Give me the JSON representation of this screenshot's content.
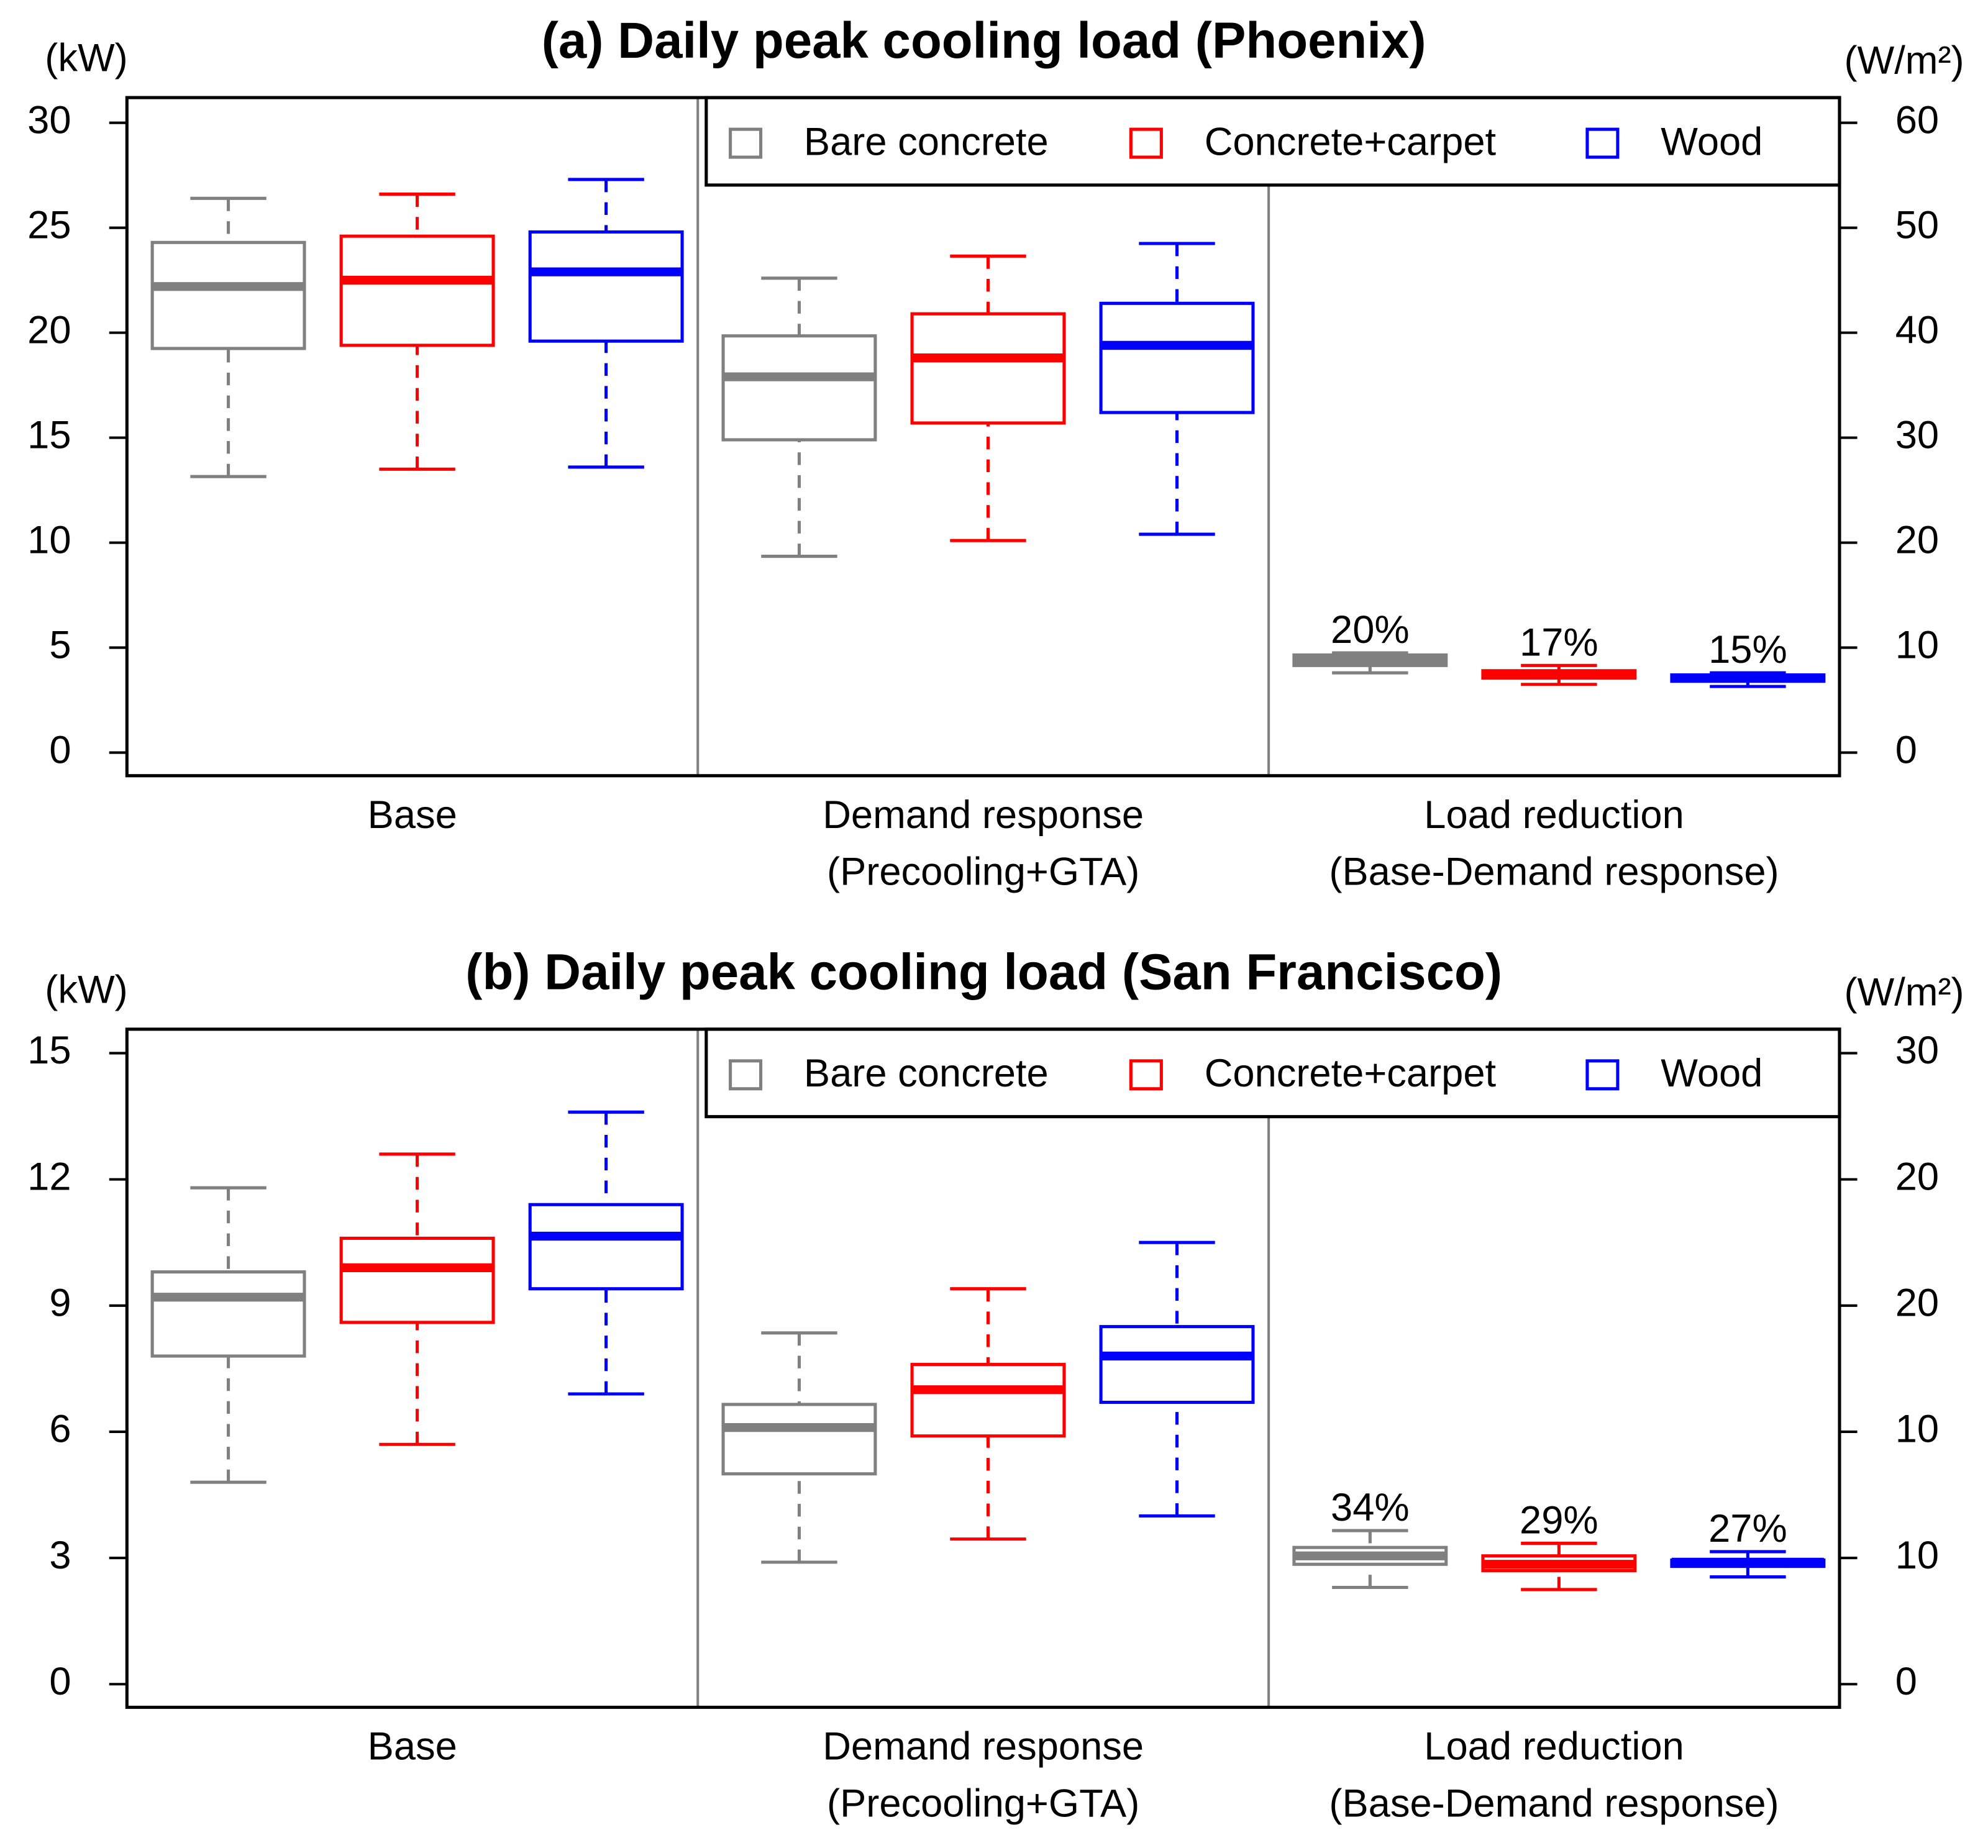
{
  "chart_data": [
    {
      "type": "box",
      "title": "(a) Daily peak cooling load (Phoenix)",
      "ylabel": "(kW)",
      "y2label": "(W/m²)",
      "categories": [
        [
          "Base"
        ],
        [
          "Demand response",
          "(Precooling+GTA)"
        ],
        [
          "Load reduction",
          "(Base-Demand response)"
        ]
      ],
      "ylim": [
        -1.1,
        31.2
      ],
      "yticks": [
        0,
        5,
        10,
        15,
        20,
        25,
        30
      ],
      "y2lim": [
        -2.2,
        62.4
      ],
      "y2ticks": [
        0,
        10,
        20,
        30,
        40,
        50,
        60
      ],
      "legend": "top-right",
      "annotations": [
        "20%",
        "17%",
        "15%"
      ],
      "series": [
        {
          "name": "Bare concrete",
          "color": "#808080",
          "values": [
            [
              13.15,
              19.25,
              22.2,
              24.3,
              26.4
            ],
            [
              9.35,
              14.9,
              17.9,
              19.85,
              22.6
            ],
            [
              3.8,
              4.15,
              4.4,
              4.65,
              4.75
            ]
          ]
        },
        {
          "name": "Concrete+carpet",
          "color": "#ff0000",
          "values": [
            [
              13.5,
              19.4,
              22.5,
              24.6,
              26.6
            ],
            [
              10.1,
              15.7,
              18.8,
              20.9,
              23.65
            ],
            [
              3.25,
              3.55,
              3.75,
              3.9,
              4.15
            ]
          ]
        },
        {
          "name": "Wood",
          "color": "#0000ff",
          "values": [
            [
              13.6,
              19.6,
              22.9,
              24.8,
              27.3
            ],
            [
              10.4,
              16.2,
              19.4,
              21.4,
              24.25
            ],
            [
              3.15,
              3.4,
              3.55,
              3.7,
              3.8
            ]
          ]
        }
      ]
    },
    {
      "type": "box",
      "title": "(b) Daily peak cooling load (San Francisco)",
      "ylabel": "(kW)",
      "y2label": "(W/m²)",
      "categories": [
        [
          "Base"
        ],
        [
          "Demand response",
          "(Precooling+GTA)"
        ],
        [
          "Load reduction",
          "(Base-Demand response)"
        ]
      ],
      "ylim": [
        -0.55,
        15.57
      ],
      "yticks": [
        0,
        3,
        6,
        9,
        12,
        15
      ],
      "y2lim": [
        -1.1,
        31.14
      ],
      "y2ticks": [
        0,
        {
          "value": 6,
          "label": "10"
        },
        {
          "value": 12,
          "label": "10"
        },
        {
          "value": 18,
          "label": "20"
        },
        {
          "value": 24,
          "label": "20"
        },
        30
      ],
      "legend": "top-right",
      "annotations": [
        "34%",
        "29%",
        "27%"
      ],
      "series": [
        {
          "name": "Bare concrete",
          "color": "#808080",
          "values": [
            [
              4.8,
              7.8,
              9.2,
              9.8,
              11.8
            ],
            [
              2.9,
              5.0,
              6.1,
              6.65,
              8.35
            ],
            [
              2.3,
              2.85,
              3.05,
              3.25,
              3.65
            ]
          ]
        },
        {
          "name": "Concrete+carpet",
          "color": "#ff0000",
          "values": [
            [
              5.7,
              8.6,
              9.9,
              10.6,
              12.6
            ],
            [
              3.45,
              5.9,
              7.0,
              7.6,
              9.4
            ],
            [
              2.25,
              2.7,
              2.85,
              3.05,
              3.35
            ]
          ]
        },
        {
          "name": "Wood",
          "color": "#0000ff",
          "values": [
            [
              6.9,
              9.4,
              10.65,
              11.4,
              13.6
            ],
            [
              4.0,
              6.7,
              7.8,
              8.5,
              10.5
            ],
            [
              2.55,
              2.8,
              2.9,
              2.95,
              3.15
            ]
          ]
        }
      ]
    }
  ]
}
